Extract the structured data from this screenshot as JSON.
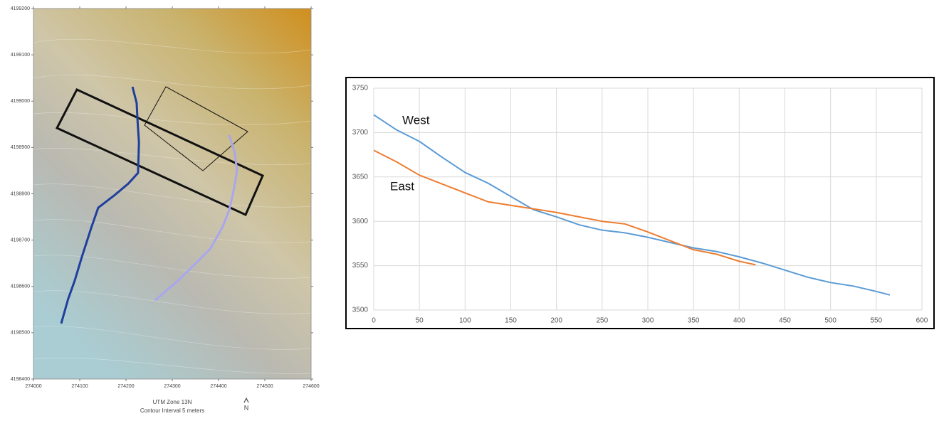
{
  "chart_data": [
    {
      "type": "map",
      "xlim": [
        274000,
        274600
      ],
      "xticks": [
        274000,
        274100,
        274200,
        274300,
        274400,
        274500,
        274600
      ],
      "ylim": [
        4198400,
        4199200
      ],
      "yticks": [
        4198400,
        4198500,
        4198600,
        4198700,
        4198800,
        4198900,
        4199000,
        4199100,
        4199200
      ],
      "caption": [
        "UTM Zone 13N",
        "Contour Interval 5 meters"
      ],
      "north": "N",
      "series": [
        {
          "color": "#1f3f9c",
          "x": [
            274214,
            274223,
            274225,
            274228,
            274226,
            274205,
            274174,
            274140,
            274125,
            274105,
            274089,
            274075,
            274060
          ],
          "values": [
            4199031,
            4198996,
            4198957,
            4198911,
            4198845,
            4198822,
            4198796,
            4198770,
            4198727,
            4198665,
            4198612,
            4198573,
            4198520
          ]
        },
        {
          "color": "#a9a6ee",
          "x": [
            274423,
            274435,
            274440,
            274432,
            274423,
            274408,
            274382,
            274351,
            274312,
            274263
          ],
          "values": [
            4198927,
            4198888,
            4198850,
            4198804,
            4198765,
            4198727,
            4198681,
            4198650,
            4198612,
            4198570
          ]
        }
      ]
    },
    {
      "type": "line",
      "xlim": [
        0,
        600
      ],
      "xticks": [
        0,
        50,
        100,
        150,
        200,
        250,
        300,
        350,
        400,
        450,
        500,
        550,
        600
      ],
      "ylim": [
        3500,
        3750
      ],
      "yticks": [
        3500,
        3550,
        3600,
        3650,
        3700,
        3750
      ],
      "grid": true,
      "series": [
        {
          "name": "West",
          "color": "#5b9bd5",
          "x": [
            0,
            25,
            50,
            75,
            100,
            125,
            150,
            175,
            200,
            225,
            250,
            275,
            300,
            325,
            350,
            375,
            400,
            425,
            450,
            475,
            500,
            525,
            550,
            565
          ],
          "values": [
            3720,
            3703,
            3690,
            3672,
            3655,
            3643,
            3628,
            3613,
            3605,
            3596,
            3590,
            3587,
            3582,
            3576,
            3570,
            3566,
            3560,
            3553,
            3545,
            3537,
            3531,
            3527,
            3521,
            3517
          ]
        },
        {
          "name": "East",
          "color": "#ed7d31",
          "x": [
            0,
            25,
            50,
            75,
            100,
            125,
            150,
            175,
            200,
            225,
            250,
            275,
            300,
            325,
            350,
            375,
            400,
            418
          ],
          "values": [
            3680,
            3667,
            3652,
            3642,
            3632,
            3622,
            3618,
            3614,
            3610,
            3605,
            3600,
            3597,
            3588,
            3578,
            3568,
            3563,
            3555,
            3551
          ]
        }
      ]
    }
  ]
}
